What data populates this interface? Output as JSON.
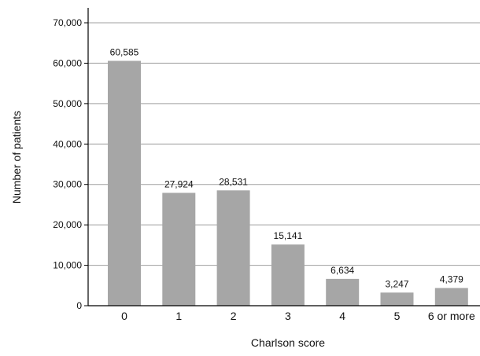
{
  "chart_data": {
    "type": "bar",
    "title": "",
    "xlabel": "Charlson score",
    "ylabel": "Number of patients",
    "categories": [
      "0",
      "1",
      "2",
      "3",
      "4",
      "5",
      "6 or more"
    ],
    "values": [
      60585,
      27924,
      28531,
      15141,
      6634,
      3247,
      4379
    ],
    "data_labels": [
      "60,585",
      "27,924",
      "28,531",
      "15,141",
      "6,634",
      "3,247",
      "4,379"
    ],
    "ylim": [
      0,
      70000
    ],
    "yticks": [
      0,
      10000,
      20000,
      30000,
      40000,
      50000,
      60000,
      70000
    ],
    "ytick_labels": [
      "0",
      "10,000",
      "20,000",
      "30,000",
      "40,000",
      "50,000",
      "60,000",
      "70,000"
    ],
    "grid": true,
    "grid_axis": "y",
    "legend": "none",
    "colors": {
      "bar": "#a6a6a6",
      "grid": "#a0a0a0",
      "axis": "#000000"
    }
  }
}
